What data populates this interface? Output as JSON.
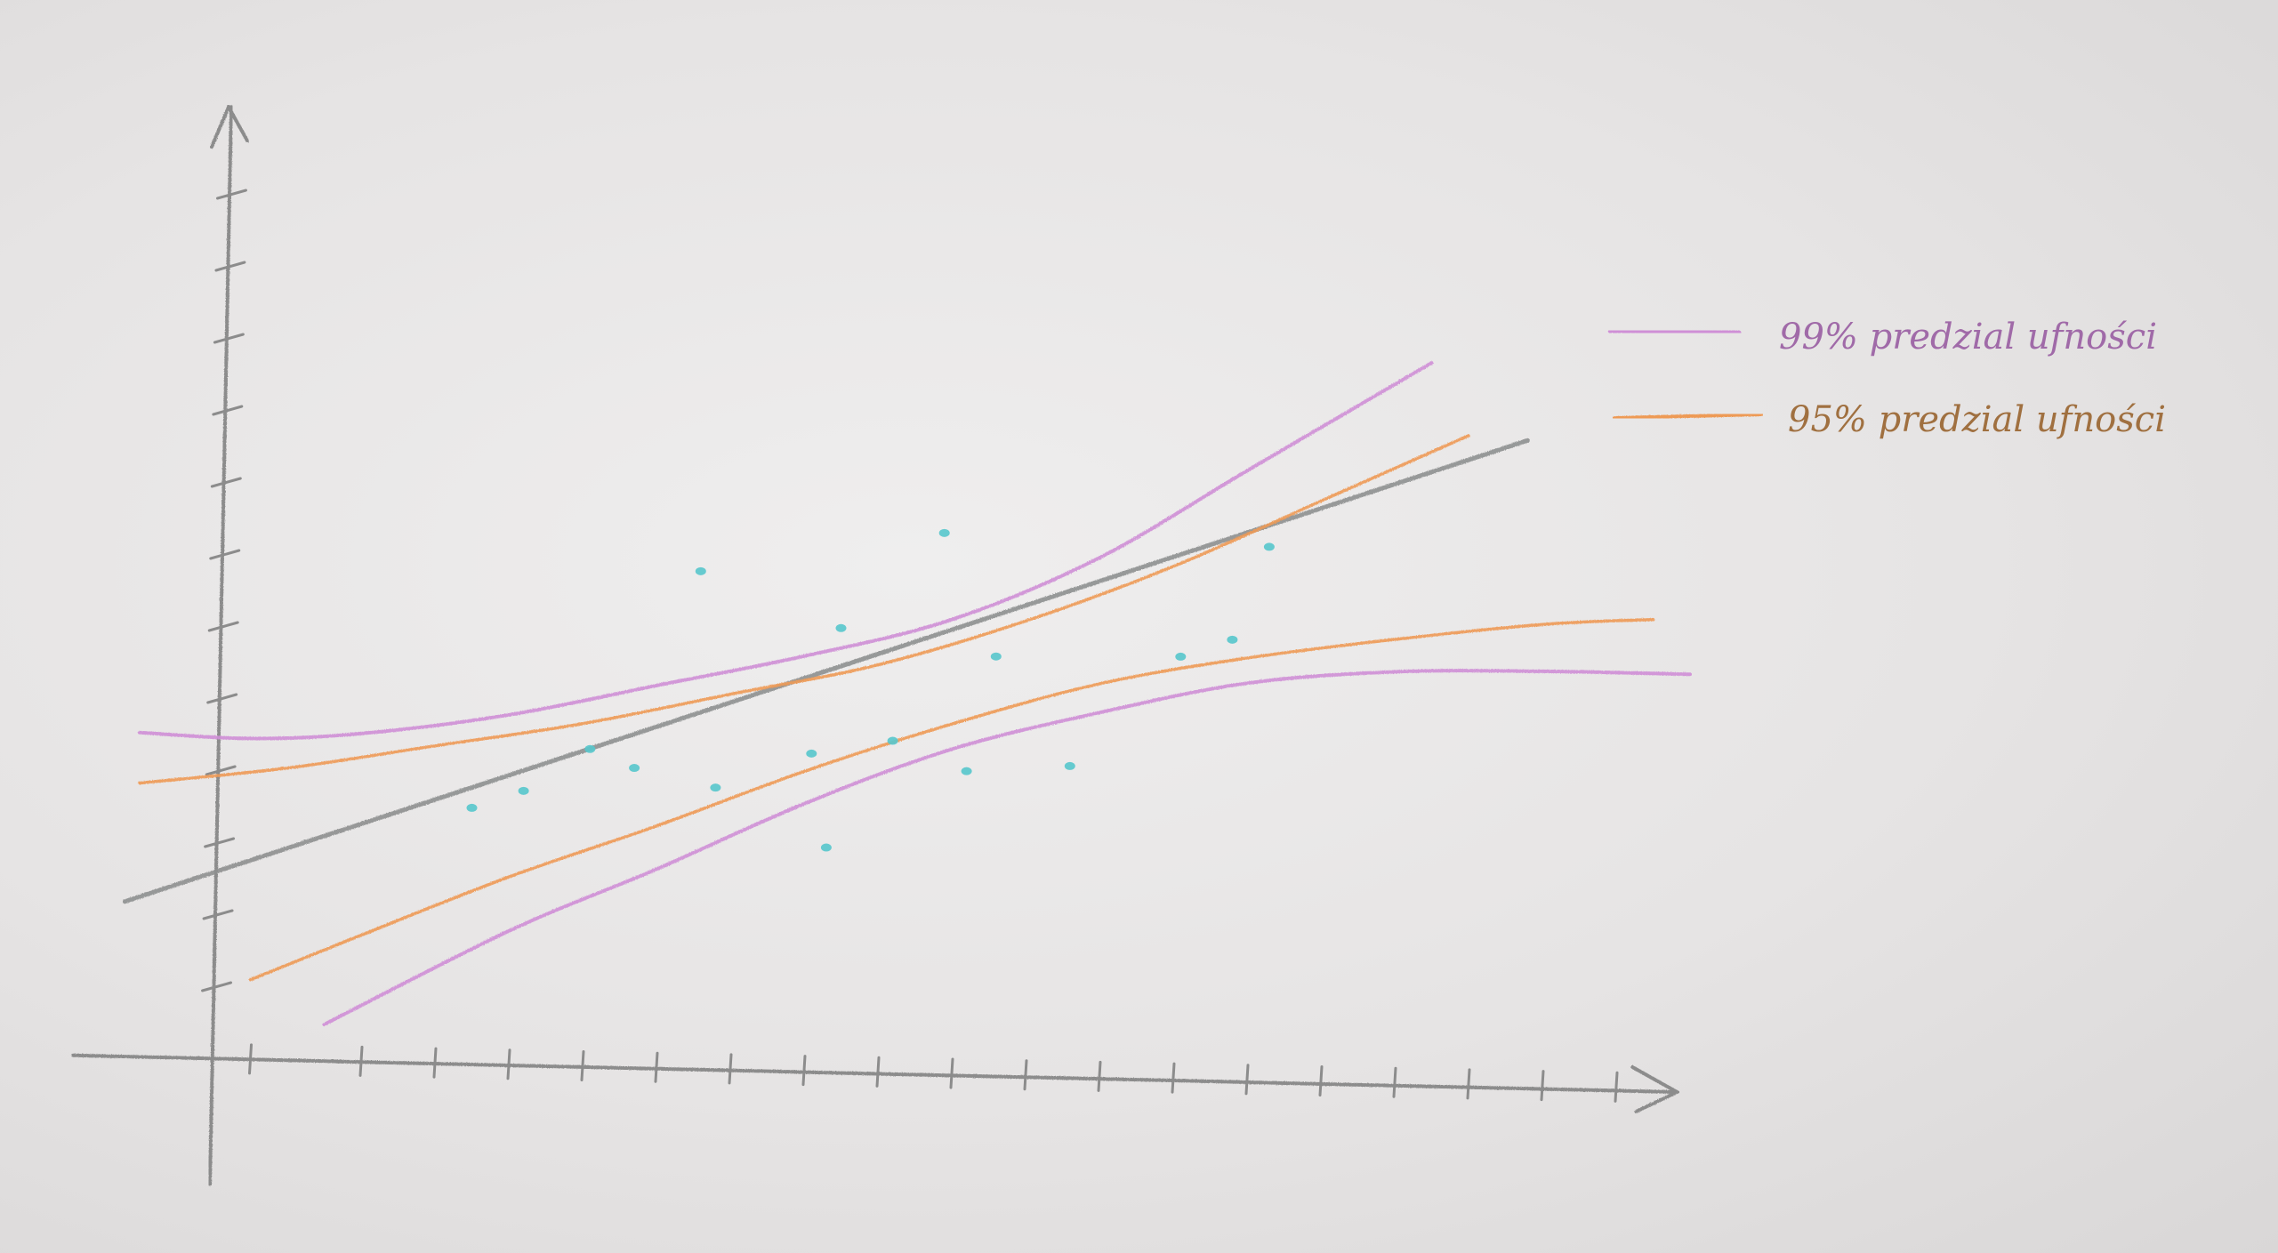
{
  "chart_data": {
    "type": "line",
    "title": "",
    "xlabel": "",
    "ylabel": "",
    "xlim": [
      0,
      20
    ],
    "ylim": [
      0,
      13
    ],
    "x_ticks": [
      0.5,
      2,
      3,
      4,
      5,
      6,
      7,
      8,
      9,
      10,
      11,
      12,
      13,
      14,
      15,
      16,
      17,
      18,
      19
    ],
    "y_ticks": [
      1,
      2,
      3,
      4,
      5,
      6,
      7,
      8,
      9,
      10,
      11,
      12
    ],
    "grid": false,
    "legend": "top-right",
    "colors": {
      "axis": "#8c8c8c",
      "regression": "#8e9090",
      "ci99": "#cf8fd6",
      "ci95": "#ee9a55",
      "points": "#57c6cc"
    },
    "series": [
      {
        "key": "regression",
        "x": [
          -1.2,
          17.8
        ],
        "y": [
          2.15,
          8.95
        ]
      },
      {
        "name": "99% predzial ufności",
        "key": "ci99_upper",
        "x": [
          -1.0,
          0.5,
          2.0,
          4.0,
          6.0,
          8.0,
          10.0,
          12.0,
          14.0,
          16.5
        ],
        "y": [
          4.5,
          4.45,
          4.55,
          4.85,
          5.3,
          5.75,
          6.3,
          7.2,
          8.45,
          10.0
        ]
      },
      {
        "name": "99% predzial ufności",
        "key": "ci99_lower",
        "x": [
          1.5,
          4.0,
          6.0,
          8.0,
          10.0,
          12.0,
          14.0,
          16.0,
          18.0,
          20.0
        ],
        "y": [
          0.5,
          1.85,
          2.75,
          3.7,
          4.5,
          5.05,
          5.5,
          5.7,
          5.75,
          5.75
        ]
      },
      {
        "name": "95% predzial ufności",
        "key": "ci95_upper",
        "x": [
          -1.0,
          1.0,
          3.0,
          5.0,
          7.0,
          9.0,
          11.0,
          13.0,
          15.0,
          17.0
        ],
        "y": [
          3.8,
          4.05,
          4.4,
          4.75,
          5.2,
          5.65,
          6.3,
          7.1,
          8.05,
          9.0
        ]
      },
      {
        "name": "95% predzial ufności",
        "key": "ci95_lower",
        "x": [
          0.5,
          2.0,
          4.0,
          6.0,
          8.0,
          10.0,
          12.0,
          14.0,
          16.0,
          18.0,
          19.5
        ],
        "y": [
          1.1,
          1.75,
          2.6,
          3.35,
          4.15,
          4.85,
          5.45,
          5.85,
          6.15,
          6.4,
          6.5
        ]
      },
      {
        "key": "points",
        "x": [
          3.5,
          4.2,
          5.1,
          5.7,
          6.8,
          6.6,
          8.1,
          8.3,
          8.5,
          9.2,
          9.9,
          10.6,
          11.6,
          13.1,
          13.8,
          14.3,
          10.2
        ],
        "y": [
          3.55,
          3.8,
          4.4,
          4.15,
          3.9,
          6.9,
          4.4,
          3.1,
          6.15,
          4.6,
          7.5,
          5.8,
          4.3,
          5.85,
          6.1,
          7.4,
          4.2
        ]
      }
    ]
  },
  "legend": {
    "items": [
      {
        "label": "99% predzial ufności",
        "color": "#cf8fd6"
      },
      {
        "label": "95% predzial ufności",
        "color": "#ee9a55"
      }
    ]
  }
}
